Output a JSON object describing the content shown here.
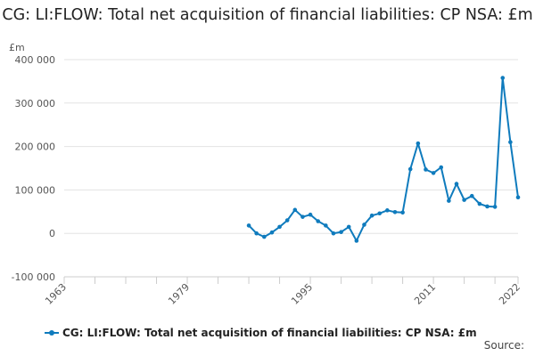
{
  "chart_data": {
    "type": "line",
    "title": "CG: LI:FLOW: Total net acquisition of financial liabilities: CP NSA: £m",
    "unit_label": "£m",
    "ylim": [
      -100000,
      400000
    ],
    "y_ticks": [
      -100000,
      0,
      100000,
      200000,
      300000,
      400000
    ],
    "y_tick_labels": [
      "-100 000",
      "0",
      "100 000",
      "200 000",
      "300 000",
      "400 000"
    ],
    "xlim": [
      1963,
      2022
    ],
    "x_ticks": [
      1963,
      1979,
      1995,
      2011,
      2022
    ],
    "x_tick_labels": [
      "1963",
      "1979",
      "1995",
      "2011",
      "2022"
    ],
    "grid": true,
    "legend_position": "bottom",
    "series": [
      {
        "name": "CG: LI:FLOW: Total net acquisition of financial liabilities: CP NSA: £m",
        "color": "#0f7bbd",
        "x": [
          1987,
          1988,
          1989,
          1990,
          1991,
          1992,
          1993,
          1994,
          1995,
          1996,
          1997,
          1998,
          1999,
          2000,
          2001,
          2002,
          2003,
          2004,
          2005,
          2006,
          2007,
          2008,
          2009,
          2010,
          2011,
          2012,
          2013,
          2014,
          2015,
          2016,
          2017,
          2018,
          2019,
          2020,
          2021,
          2022
        ],
        "values": [
          18000,
          0,
          -8000,
          2000,
          15000,
          30000,
          54000,
          38000,
          43000,
          28000,
          18000,
          0,
          3000,
          15000,
          -17000,
          20000,
          41000,
          46000,
          53000,
          49000,
          48000,
          148000,
          207000,
          147000,
          139000,
          152000,
          75000,
          114000,
          77000,
          86000,
          68000,
          62000,
          61000,
          358000,
          210000,
          83000
        ]
      }
    ]
  },
  "source_label": "Source:"
}
